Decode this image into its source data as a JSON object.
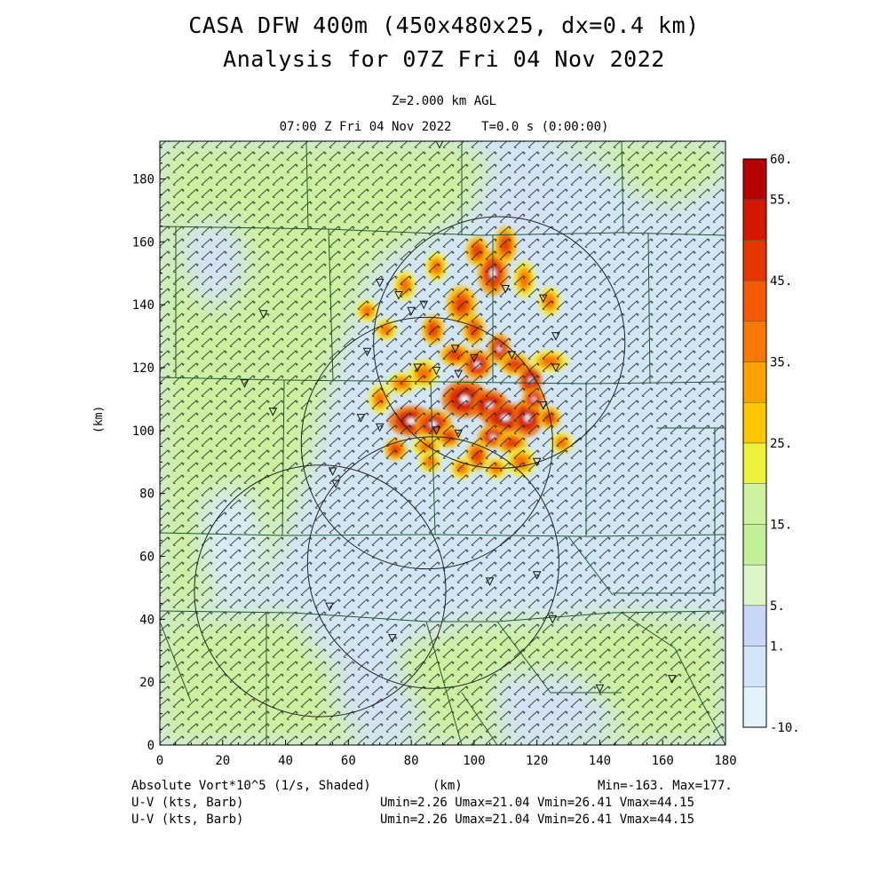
{
  "title": {
    "line1": "CASA DFW 400m (450x480x25, dx=0.4 km)",
    "line2": "Analysis for 07Z Fri 04 Nov 2022"
  },
  "subtitle": {
    "level": "Z=2.000 km AGL",
    "time": "07:00 Z Fri 04 Nov 2022    T=0.0 s (0:00:00)"
  },
  "axes": {
    "xlabel": "(km)",
    "ylabel": "(km)",
    "x_range": [
      0,
      180
    ],
    "y_range": [
      0,
      192
    ],
    "x_ticks": [
      "0",
      "20",
      "40",
      "60",
      "80",
      "100",
      "120",
      "140",
      "160",
      "180"
    ],
    "y_ticks": [
      "0",
      "20",
      "40",
      "60",
      "80",
      "100",
      "120",
      "140",
      "160",
      "180"
    ]
  },
  "colorbar": {
    "labels": [
      "60.",
      "55.",
      "45.",
      "35.",
      "25.",
      "15.",
      "5.",
      "1.",
      "-10."
    ],
    "colors": [
      "#b40000",
      "#d21800",
      "#e63600",
      "#f45a00",
      "#f87800",
      "#fba200",
      "#fcc600",
      "#eef23a",
      "#cdf2a0",
      "#c4f09a",
      "#dcf6c8",
      "#c8d8f6",
      "#d4e4f8",
      "#e4f2fa"
    ]
  },
  "footer": {
    "field": "Absolute Vort*10^5 (1/s, Shaded)",
    "xunit": "(km)",
    "minmax": "Min=-163. Max=177.",
    "wind1_label": "U-V (kts, Barb)",
    "wind1_stats": "Umin=2.26 Umax=21.04 Vmin=26.41 Vmax=44.15",
    "wind2_label": "U-V (kts, Barb)",
    "wind2_stats": "Umin=2.26 Umax=21.04 Vmin=26.41 Vmax=44.15"
  },
  "map": {
    "radar_rings_km": [
      {
        "x": 108,
        "y": 128,
        "r": 40
      },
      {
        "x": 85,
        "y": 96,
        "r": 40
      },
      {
        "x": 87,
        "y": 58,
        "r": 40
      },
      {
        "x": 51,
        "y": 49,
        "r": 40
      }
    ],
    "stations_km": [
      [
        89,
        191
      ],
      [
        33,
        137
      ],
      [
        27,
        115
      ],
      [
        36,
        106
      ],
      [
        66,
        125
      ],
      [
        70,
        147
      ],
      [
        76,
        143
      ],
      [
        80,
        138
      ],
      [
        84,
        140
      ],
      [
        94,
        126
      ],
      [
        100,
        123
      ],
      [
        82,
        120
      ],
      [
        88,
        119
      ],
      [
        95,
        118
      ],
      [
        110,
        145
      ],
      [
        122,
        142
      ],
      [
        126,
        130
      ],
      [
        126,
        120
      ],
      [
        112,
        124
      ],
      [
        64,
        104
      ],
      [
        70,
        101
      ],
      [
        88,
        100
      ],
      [
        95,
        99
      ],
      [
        122,
        108
      ],
      [
        120,
        90
      ],
      [
        55,
        87
      ],
      [
        56,
        83
      ],
      [
        54,
        44
      ],
      [
        74,
        34
      ],
      [
        105,
        52
      ],
      [
        120,
        54
      ],
      [
        125,
        40
      ],
      [
        140,
        18
      ],
      [
        163,
        21
      ]
    ],
    "vorticity_cells_km": [
      [
        80,
        103,
        6,
        4,
        55
      ],
      [
        87,
        102,
        5,
        4,
        45
      ],
      [
        97,
        110,
        6,
        5,
        60
      ],
      [
        105,
        108,
        5,
        4,
        55
      ],
      [
        110,
        104,
        6,
        4,
        60
      ],
      [
        117,
        104,
        4,
        5,
        55
      ],
      [
        106,
        98,
        4,
        3,
        45
      ],
      [
        101,
        92,
        3,
        4,
        40
      ],
      [
        112,
        96,
        4,
        3,
        35
      ],
      [
        115,
        90,
        4,
        4,
        30
      ],
      [
        75,
        94,
        3,
        3,
        35
      ],
      [
        85,
        95,
        4,
        3,
        30
      ],
      [
        92,
        98,
        3,
        3,
        40
      ],
      [
        70,
        110,
        3,
        4,
        30
      ],
      [
        77,
        115,
        4,
        3,
        25
      ],
      [
        84,
        118,
        4,
        4,
        30
      ],
      [
        94,
        124,
        4,
        3,
        35
      ],
      [
        101,
        121,
        4,
        4,
        50
      ],
      [
        108,
        126,
        3,
        4,
        45
      ],
      [
        113,
        121,
        4,
        3,
        40
      ],
      [
        118,
        116,
        3,
        4,
        55
      ],
      [
        124,
        122,
        5,
        3,
        30
      ],
      [
        119,
        110,
        3,
        3,
        45
      ],
      [
        124,
        104,
        3,
        3,
        40
      ],
      [
        87,
        132,
        3,
        4,
        35
      ],
      [
        96,
        140,
        4,
        5,
        40
      ],
      [
        106,
        150,
        4,
        6,
        45
      ],
      [
        110,
        159,
        3,
        5,
        40
      ],
      [
        116,
        148,
        3,
        5,
        30
      ],
      [
        124,
        141,
        3,
        4,
        25
      ],
      [
        72,
        132,
        3,
        3,
        30
      ],
      [
        66,
        138,
        3,
        3,
        25
      ],
      [
        78,
        146,
        3,
        4,
        25
      ],
      [
        88,
        152,
        3,
        4,
        30
      ],
      [
        101,
        157,
        3,
        4,
        35
      ],
      [
        86,
        90,
        3,
        3,
        30
      ],
      [
        96,
        88,
        3,
        3,
        25
      ],
      [
        107,
        88,
        3,
        3,
        30
      ],
      [
        128,
        96,
        3,
        3,
        25
      ],
      [
        100,
        132,
        3,
        4,
        40
      ]
    ]
  }
}
